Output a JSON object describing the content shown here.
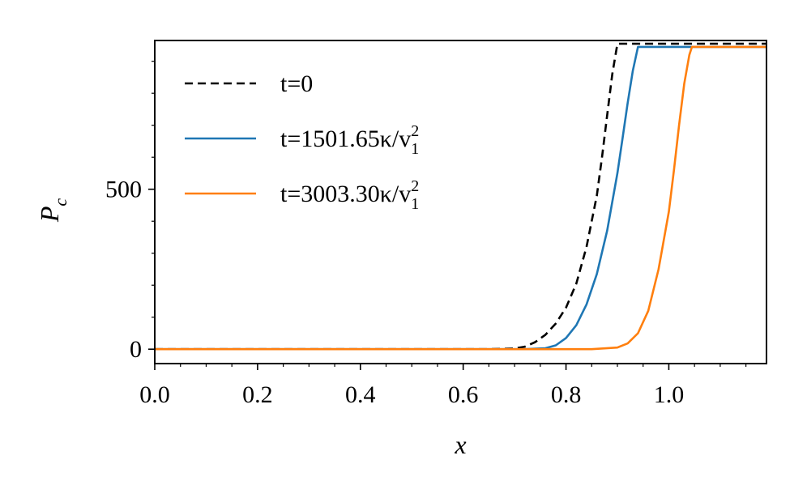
{
  "chart_data": {
    "type": "line",
    "title": "",
    "xlabel": "x",
    "ylabel": "P",
    "ylabel_sub": "c",
    "xlim": [
      0.0,
      1.19
    ],
    "ylim": [
      -45,
      965
    ],
    "x_ticks": [
      {
        "value": 0.0,
        "label": "0.0"
      },
      {
        "value": 0.2,
        "label": "0.2"
      },
      {
        "value": 0.4,
        "label": "0.4"
      },
      {
        "value": 0.6,
        "label": "0.6"
      },
      {
        "value": 0.8,
        "label": "0.8"
      },
      {
        "value": 1.0,
        "label": "1.0"
      }
    ],
    "y_ticks": [
      {
        "value": 0,
        "label": "0"
      },
      {
        "value": 500,
        "label": "500"
      }
    ],
    "grid": false,
    "legend_position": "top-left",
    "series": [
      {
        "label_main": "t=0",
        "label_sup": "",
        "label_sub": "",
        "color": "#000000",
        "dash": "dashed",
        "x": [
          0.0,
          0.65,
          0.7,
          0.72,
          0.74,
          0.76,
          0.78,
          0.8,
          0.82,
          0.84,
          0.86,
          0.87,
          0.88,
          0.89,
          0.9,
          1.19
        ],
        "y": [
          0,
          0,
          2,
          8,
          22,
          45,
          80,
          130,
          205,
          320,
          480,
          600,
          730,
          860,
          955,
          955
        ]
      },
      {
        "label_main": "t=1501.65κ/v",
        "label_sup": "2",
        "label_sub": "1",
        "color": "#1f77b4",
        "dash": "solid",
        "x": [
          0.0,
          0.72,
          0.76,
          0.78,
          0.8,
          0.82,
          0.84,
          0.86,
          0.88,
          0.9,
          0.91,
          0.92,
          0.93,
          0.94,
          1.19
        ],
        "y": [
          0,
          0,
          3,
          12,
          35,
          75,
          140,
          235,
          370,
          550,
          660,
          770,
          870,
          945,
          945
        ]
      },
      {
        "label_main": "t=3003.30κ/v",
        "label_sup": "2",
        "label_sub": "1",
        "color": "#ff7f0e",
        "dash": "solid",
        "x": [
          0.0,
          0.85,
          0.9,
          0.92,
          0.94,
          0.96,
          0.98,
          1.0,
          1.01,
          1.02,
          1.03,
          1.04,
          1.045,
          1.19
        ],
        "y": [
          0,
          0,
          5,
          18,
          50,
          120,
          250,
          430,
          560,
          700,
          830,
          920,
          945,
          945
        ]
      }
    ]
  }
}
